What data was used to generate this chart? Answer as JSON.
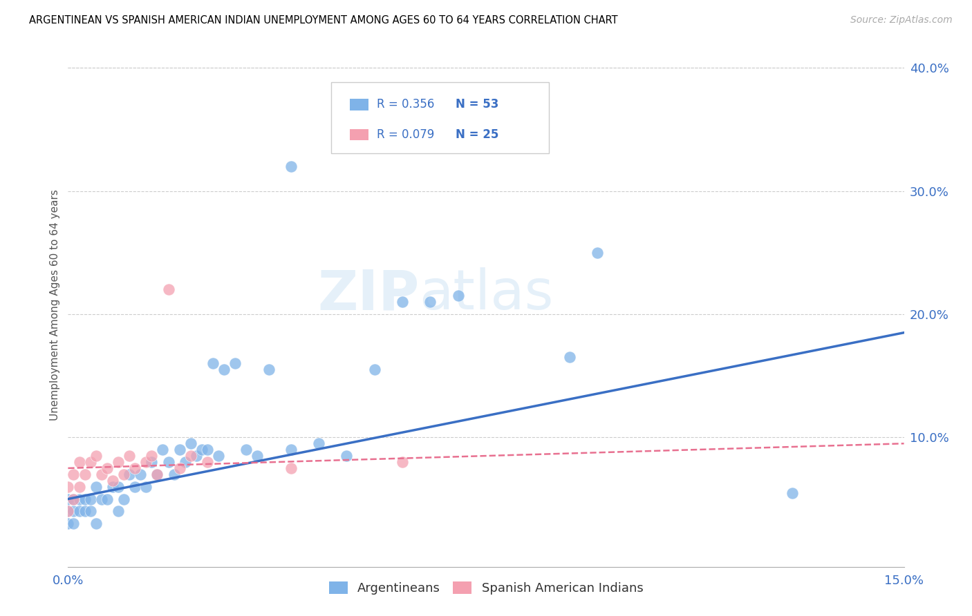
{
  "title": "ARGENTINEAN VS SPANISH AMERICAN INDIAN UNEMPLOYMENT AMONG AGES 60 TO 64 YEARS CORRELATION CHART",
  "source": "Source: ZipAtlas.com",
  "ylabel": "Unemployment Among Ages 60 to 64 years",
  "xlim": [
    0.0,
    0.15
  ],
  "ylim": [
    -0.005,
    0.42
  ],
  "xticks": [
    0.0,
    0.03,
    0.06,
    0.09,
    0.12,
    0.15
  ],
  "yticks_right": [
    0.1,
    0.2,
    0.3,
    0.4
  ],
  "ytick_labels_right": [
    "10.0%",
    "20.0%",
    "30.0%",
    "40.0%"
  ],
  "xtick_labels": [
    "0.0%",
    "",
    "",
    "",
    "",
    "15.0%"
  ],
  "r_argentinean": 0.356,
  "n_argentinean": 53,
  "r_spanish": 0.079,
  "n_spanish": 25,
  "color_argentinean": "#7fb3e8",
  "color_spanish": "#f4a0b0",
  "trendline_argentinean_color": "#3a6fc4",
  "trendline_spanish_color": "#e87090",
  "legend_label_1": "Argentineans",
  "legend_label_2": "Spanish American Indians",
  "watermark_zip": "ZIP",
  "watermark_atlas": "atlas",
  "argentinean_x": [
    0.0,
    0.0,
    0.0,
    0.001,
    0.001,
    0.001,
    0.002,
    0.002,
    0.003,
    0.003,
    0.004,
    0.004,
    0.005,
    0.005,
    0.006,
    0.007,
    0.008,
    0.009,
    0.009,
    0.01,
    0.011,
    0.012,
    0.013,
    0.014,
    0.015,
    0.016,
    0.017,
    0.018,
    0.019,
    0.02,
    0.021,
    0.022,
    0.023,
    0.024,
    0.025,
    0.026,
    0.027,
    0.028,
    0.03,
    0.032,
    0.034,
    0.036,
    0.04,
    0.045,
    0.05,
    0.055,
    0.06,
    0.065,
    0.07,
    0.09,
    0.095,
    0.13,
    0.04
  ],
  "argentinean_y": [
    0.03,
    0.04,
    0.05,
    0.04,
    0.03,
    0.05,
    0.05,
    0.04,
    0.04,
    0.05,
    0.04,
    0.05,
    0.06,
    0.03,
    0.05,
    0.05,
    0.06,
    0.04,
    0.06,
    0.05,
    0.07,
    0.06,
    0.07,
    0.06,
    0.08,
    0.07,
    0.09,
    0.08,
    0.07,
    0.09,
    0.08,
    0.095,
    0.085,
    0.09,
    0.09,
    0.16,
    0.085,
    0.155,
    0.16,
    0.09,
    0.085,
    0.155,
    0.09,
    0.095,
    0.085,
    0.155,
    0.21,
    0.21,
    0.215,
    0.165,
    0.25,
    0.055,
    0.32
  ],
  "spanish_x": [
    0.0,
    0.0,
    0.001,
    0.001,
    0.002,
    0.002,
    0.003,
    0.004,
    0.005,
    0.006,
    0.007,
    0.008,
    0.009,
    0.01,
    0.011,
    0.012,
    0.014,
    0.015,
    0.016,
    0.018,
    0.02,
    0.022,
    0.025,
    0.04,
    0.06
  ],
  "spanish_y": [
    0.04,
    0.06,
    0.05,
    0.07,
    0.06,
    0.08,
    0.07,
    0.08,
    0.085,
    0.07,
    0.075,
    0.065,
    0.08,
    0.07,
    0.085,
    0.075,
    0.08,
    0.085,
    0.07,
    0.22,
    0.075,
    0.085,
    0.08,
    0.075,
    0.08
  ],
  "trendline_blue_x0": 0.0,
  "trendline_blue_y0": 0.05,
  "trendline_blue_x1": 0.15,
  "trendline_blue_y1": 0.185,
  "trendline_pink_x0": 0.0,
  "trendline_pink_y0": 0.075,
  "trendline_pink_x1": 0.15,
  "trendline_pink_y1": 0.095
}
